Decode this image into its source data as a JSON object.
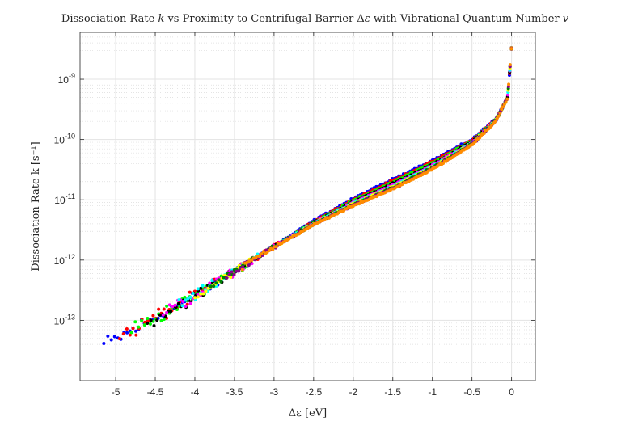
{
  "chart_data": {
    "type": "scatter",
    "title": "Dissociation Rate k vs Proximity to Centrifugal Barrier Δε with Vibrational Quantum Number v",
    "title_parts": [
      {
        "text": "Dissociation Rate ",
        "italic": false
      },
      {
        "text": "k",
        "italic": true
      },
      {
        "text": " vs Proximity to Centrifugal Barrier Δ",
        "italic": false
      },
      {
        "text": "ε",
        "italic": true
      },
      {
        "text": " with Vibrational Quantum Number ",
        "italic": false
      },
      {
        "text": "v",
        "italic": true
      }
    ],
    "xlabel": "Δε [eV]",
    "ylabel": "Dissociation Rate k [s⁻¹]",
    "x_ticks": [
      "-5",
      "-4.5",
      "-4",
      "-3.5",
      "-3",
      "-2.5",
      "-2",
      "-1.5",
      "-1",
      "-0.5",
      "0"
    ],
    "y_ticks": [
      {
        "base": "10",
        "exp": "-13"
      },
      {
        "base": "10",
        "exp": "-12"
      },
      {
        "base": "10",
        "exp": "-11"
      },
      {
        "base": "10",
        "exp": "-10"
      },
      {
        "base": "10",
        "exp": "-9"
      }
    ],
    "xlim": [
      -5.45,
      0.3
    ],
    "ylim": [
      1e-14,
      6e-09
    ],
    "y_scale": "log",
    "grid": true,
    "minor_grid": true,
    "marker_size": 2,
    "series_colors": [
      "#0000ff",
      "#ff0000",
      "#00ff00",
      "#000000",
      "#ff00ff",
      "#00ffff",
      "#ffff00",
      "#008000",
      "#8b008b",
      "#ff8c00"
    ],
    "trend": [
      {
        "x": -5.1,
        "y": 4e-14
      },
      {
        "x": -4.7,
        "y": 8e-14
      },
      {
        "x": -4.0,
        "y": 2.5e-13
      },
      {
        "x": -3.5,
        "y": 6.5e-13
      },
      {
        "x": -3.0,
        "y": 1.7e-12
      },
      {
        "x": -2.5,
        "y": 4.5e-12
      },
      {
        "x": -2.0,
        "y": 1.05e-11
      },
      {
        "x": -1.5,
        "y": 2.2e-11
      },
      {
        "x": -1.0,
        "y": 4.5e-11
      },
      {
        "x": -0.5,
        "y": 1e-10
      },
      {
        "x": -0.2,
        "y": 2.2e-10
      },
      {
        "x": -0.05,
        "y": 5e-10
      },
      {
        "x": 0.0,
        "y": 3.5e-09
      }
    ],
    "series_x_start": [
      -5.15,
      -4.95,
      -4.8,
      -4.6,
      -4.4,
      -4.2,
      -4.0,
      -3.8,
      -3.6,
      -3.4
    ],
    "series_spread_at_zero": [
      0.0,
      0.04,
      0.08,
      0.12,
      0.15,
      0.18,
      0.2,
      0.22,
      0.24,
      0.26
    ]
  }
}
